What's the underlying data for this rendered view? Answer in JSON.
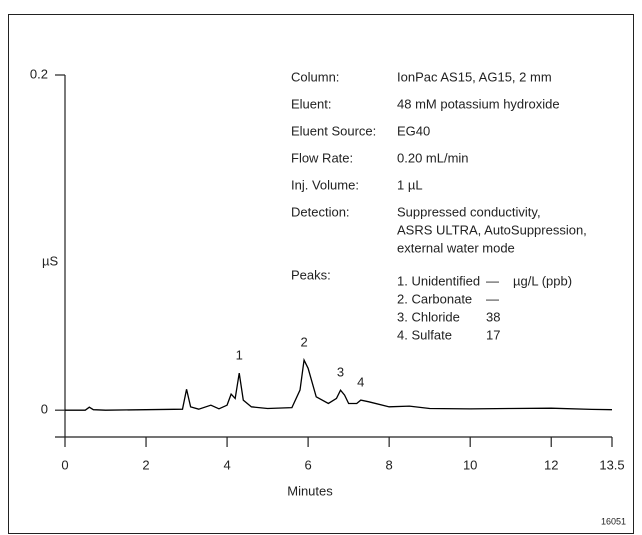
{
  "chart_data": {
    "type": "line",
    "y_label": "µS",
    "x_label": "Minutes",
    "figure_id": "16051",
    "x": [
      0,
      0.5,
      0.6,
      0.7,
      1.0,
      2.0,
      2.9,
      3.0,
      3.1,
      3.3,
      3.6,
      3.8,
      4.0,
      4.1,
      4.2,
      4.3,
      4.4,
      4.6,
      5.0,
      5.6,
      5.8,
      5.9,
      6.0,
      6.2,
      6.5,
      6.7,
      6.8,
      6.9,
      7.0,
      7.2,
      7.3,
      7.5,
      8.0,
      8.5,
      9.0,
      10,
      11,
      12,
      13,
      13.5
    ],
    "values": [
      0,
      0,
      0.0018,
      0.0003,
      0,
      0.0003,
      0.0006,
      0.0125,
      0.002,
      0.0006,
      0.003,
      0.0008,
      0.003,
      0.0096,
      0.007,
      0.0221,
      0.006,
      0.002,
      0.001,
      0.0015,
      0.012,
      0.0299,
      0.025,
      0.008,
      0.004,
      0.007,
      0.0119,
      0.009,
      0.004,
      0.004,
      0.006,
      0.005,
      0.002,
      0.0024,
      0.001,
      0.0008,
      0.001,
      0.0012,
      0.0005,
      0.0003
    ],
    "color": "#000000",
    "xlim": [
      0,
      13.5
    ],
    "xticks": [
      0,
      2,
      4,
      6,
      8,
      10,
      12,
      13.5
    ],
    "ylim": [
      -0.016,
      0.2
    ],
    "yticks": [
      0,
      0.2
    ],
    "peak_labels": [
      {
        "label": "1",
        "x": 4.3,
        "y": 0.0221
      },
      {
        "label": "2",
        "x": 5.9,
        "y": 0.0299
      },
      {
        "label": "3",
        "x": 6.8,
        "y": 0.0119
      },
      {
        "label": "4",
        "x": 7.3,
        "y": 0.006
      }
    ],
    "conditions": [
      {
        "label": "Column:",
        "value": [
          "IonPac AS15, AG15, 2 mm"
        ]
      },
      {
        "label": "Eluent:",
        "value": [
          "48 mM potassium hydroxide"
        ]
      },
      {
        "label": "Eluent Source:",
        "value": [
          "EG40"
        ]
      },
      {
        "label": "Flow Rate:",
        "value": [
          "0.20 mL/min"
        ]
      },
      {
        "label": "Inj. Volume:",
        "value": [
          "1 µL"
        ]
      },
      {
        "label": "Detection:",
        "value": [
          "Suppressed conductivity,",
          "ASRS ULTRA, AutoSuppression,",
          "external water mode"
        ]
      }
    ],
    "peaks_label": "Peaks:",
    "peaks": [
      [
        "1. Unidentified",
        "—",
        "µg/L (ppb)"
      ],
      [
        "2. Carbonate",
        "—"
      ],
      [
        "3. Chloride",
        38
      ],
      [
        "4. Sulfate",
        17
      ]
    ]
  }
}
